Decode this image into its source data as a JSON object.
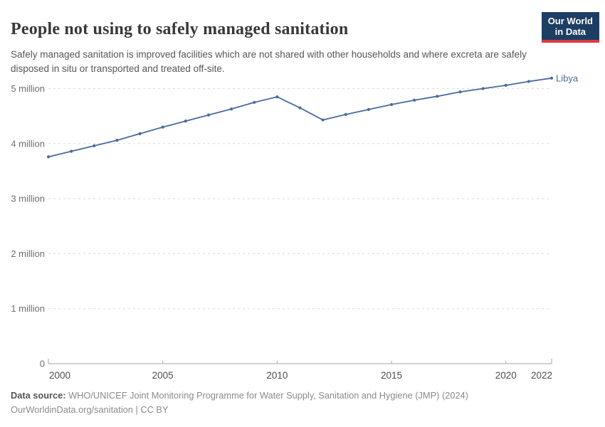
{
  "header": {
    "title": "People not using to safely managed sanitation",
    "subtitle": "Safely managed sanitation is improved facilities which are not shared with other households and where excreta are safely disposed in situ or transported and treated off-site."
  },
  "logo": {
    "line1": "Our World",
    "line2": "in Data",
    "bg_color": "#1d3d63",
    "bar_color": "#d93b42"
  },
  "chart_data": {
    "type": "line",
    "title": "People not using to safely managed sanitation",
    "xlabel": "",
    "ylabel": "",
    "x": [
      2000,
      2001,
      2002,
      2003,
      2004,
      2005,
      2006,
      2007,
      2008,
      2009,
      2010,
      2011,
      2012,
      2013,
      2014,
      2015,
      2016,
      2017,
      2018,
      2019,
      2020,
      2021,
      2022
    ],
    "series": [
      {
        "name": "Libya",
        "color": "#4c6a9c",
        "values": [
          3760000,
          3860000,
          3960000,
          4060000,
          4180000,
          4300000,
          4410000,
          4520000,
          4630000,
          4750000,
          4850000,
          4650000,
          4430000,
          4530000,
          4620000,
          4710000,
          4790000,
          4860000,
          4940000,
          5000000,
          5060000,
          5130000,
          5190000
        ]
      }
    ],
    "xlim": [
      2000,
      2022
    ],
    "ylim": [
      0,
      5400000
    ],
    "x_ticks": [
      2000,
      2005,
      2010,
      2015,
      2020,
      2022
    ],
    "x_tick_labels": [
      "2000",
      "2005",
      "2010",
      "2015",
      "2020",
      "2022"
    ],
    "y_ticks": [
      0,
      1000000,
      2000000,
      3000000,
      4000000,
      5000000
    ],
    "y_tick_labels": [
      "0",
      "1 million",
      "2 million",
      "3 million",
      "4 million",
      "5 million"
    ],
    "grid": "horizontal-dashed",
    "legend_position": "end-of-line"
  },
  "footer": {
    "source_label": "Data source:",
    "source_text": "WHO/UNICEF Joint Monitoring Programme for Water Supply, Sanitation and Hygiene (JMP) (2024)",
    "license_text": "OurWorldinData.org/sanitation | CC BY"
  }
}
